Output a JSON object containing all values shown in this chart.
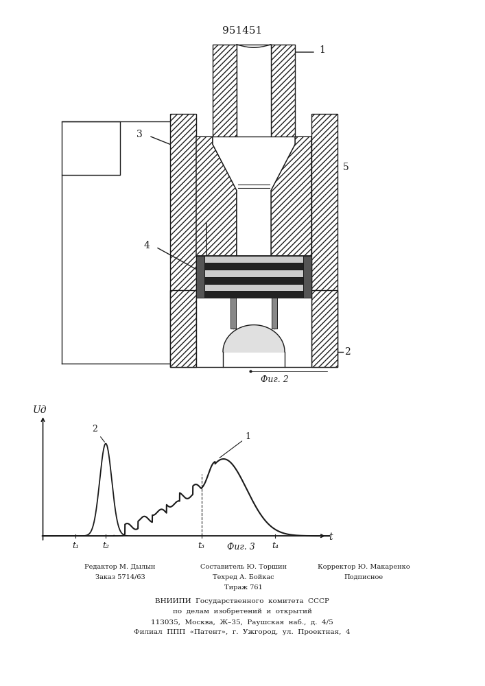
{
  "patent_number": "951451",
  "fig2_label": "Фиг. 2",
  "fig3_label": "Фиг. 3",
  "ylabel": "Uд",
  "xlabel": "t",
  "t_labels": [
    "t₁",
    "t₂",
    "t₃",
    "t₄"
  ],
  "bg_color": "#ffffff",
  "line_color": "#1a1a1a",
  "footer_col1_line1": "Редактор М. Дылын",
  "footer_col1_line2": "Заказ 5714/63",
  "footer_col2_line1": "Составитель Ю. Торшин",
  "footer_col2_line2": "Техред А. Бойкас",
  "footer_col2_line3": "Тираж 761",
  "footer_col3_line1": "Корректор Ю. Макаренко",
  "footer_col3_line2": "Подписное",
  "footer_vniipti_1": "ВНИИПИ  Государственного  комитета  СССР",
  "footer_vniipti_2": "по  делам  изобретений  и  открытий",
  "footer_vniipti_3": "113035,  Москва,  Ж–35,  Раушская  наб.,  д.  4/5",
  "footer_vniipti_4": "Филиал  ППП  «Патент»,  г.  Ужгород,  ул.  Проектная,  4"
}
